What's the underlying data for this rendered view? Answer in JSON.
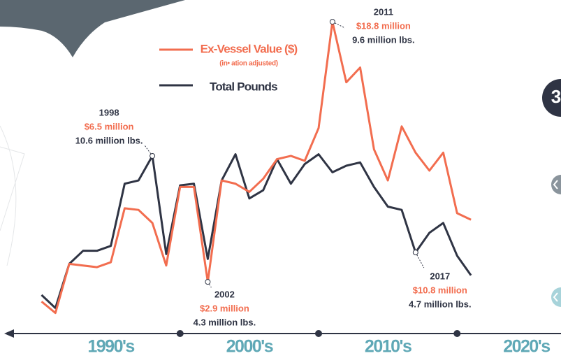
{
  "chart_data": {
    "type": "line",
    "x": [
      1990,
      1991,
      1992,
      1993,
      1994,
      1995,
      1996,
      1997,
      1998,
      1999,
      2000,
      2001,
      2002,
      2003,
      2004,
      2005,
      2006,
      2007,
      2008,
      2009,
      2010,
      2011,
      2012,
      2013,
      2014,
      2015,
      2016,
      2017,
      2018,
      2019,
      2020,
      2021
    ],
    "series": [
      {
        "name": "Ex-Vessel Value ($)",
        "subtitle": "(in• ation adjusted)",
        "color": "#f26d4f",
        "values": [
          1.7,
          1.0,
          4.0,
          3.9,
          3.8,
          4.1,
          7.4,
          7.3,
          6.5,
          3.9,
          8.7,
          8.7,
          2.9,
          9.1,
          8.9,
          8.4,
          9.2,
          10.4,
          10.6,
          10.3,
          12.3,
          18.8,
          15.1,
          16.0,
          11.0,
          9.1,
          12.4,
          10.8,
          9.7,
          10.8,
          7.1,
          6.7
        ]
      },
      {
        "name": "Total Pounds",
        "color": "#2f3444",
        "values": [
          2.1,
          1.3,
          4.0,
          4.8,
          4.8,
          5.1,
          8.9,
          9.1,
          10.6,
          4.6,
          8.8,
          8.9,
          4.3,
          9.1,
          10.7,
          8.0,
          8.5,
          10.4,
          8.9,
          10.1,
          10.7,
          9.6,
          10.0,
          10.2,
          8.7,
          7.5,
          7.3,
          4.7,
          5.9,
          6.5,
          4.5,
          3.3
        ]
      }
    ],
    "xlim": [
      1987,
      2027.5
    ],
    "ylim": [
      0,
      20
    ],
    "xticks": [
      {
        "value": 1995,
        "label": "1990's"
      },
      {
        "value": 2005,
        "label": "2000's"
      },
      {
        "value": 2015,
        "label": "2010's"
      },
      {
        "value": 2025,
        "label": "2020's"
      }
    ],
    "decade_markers": [
      2000,
      2010,
      2020
    ],
    "annotations": [
      {
        "x": 1998,
        "anchor": "Total Pounds",
        "year": "1998",
        "value": "$6.5 million",
        "pounds": "10.6 million lbs."
      },
      {
        "x": 2002,
        "anchor": "Ex-Vessel Value ($)",
        "year": "2002",
        "value": "$2.9 million",
        "pounds": "4.3 million lbs."
      },
      {
        "x": 2011,
        "anchor": "Ex-Vessel Value ($)",
        "year": "2011",
        "value": "$18.8 million",
        "pounds": "9.6 million lbs."
      },
      {
        "x": 2017,
        "anchor": "Total Pounds",
        "year": "2017",
        "value": "$10.8 million",
        "pounds": "4.7 million lbs."
      }
    ],
    "badge": "3",
    "axis_color": "#2f3444",
    "decade_color": "#5fa8b6"
  }
}
